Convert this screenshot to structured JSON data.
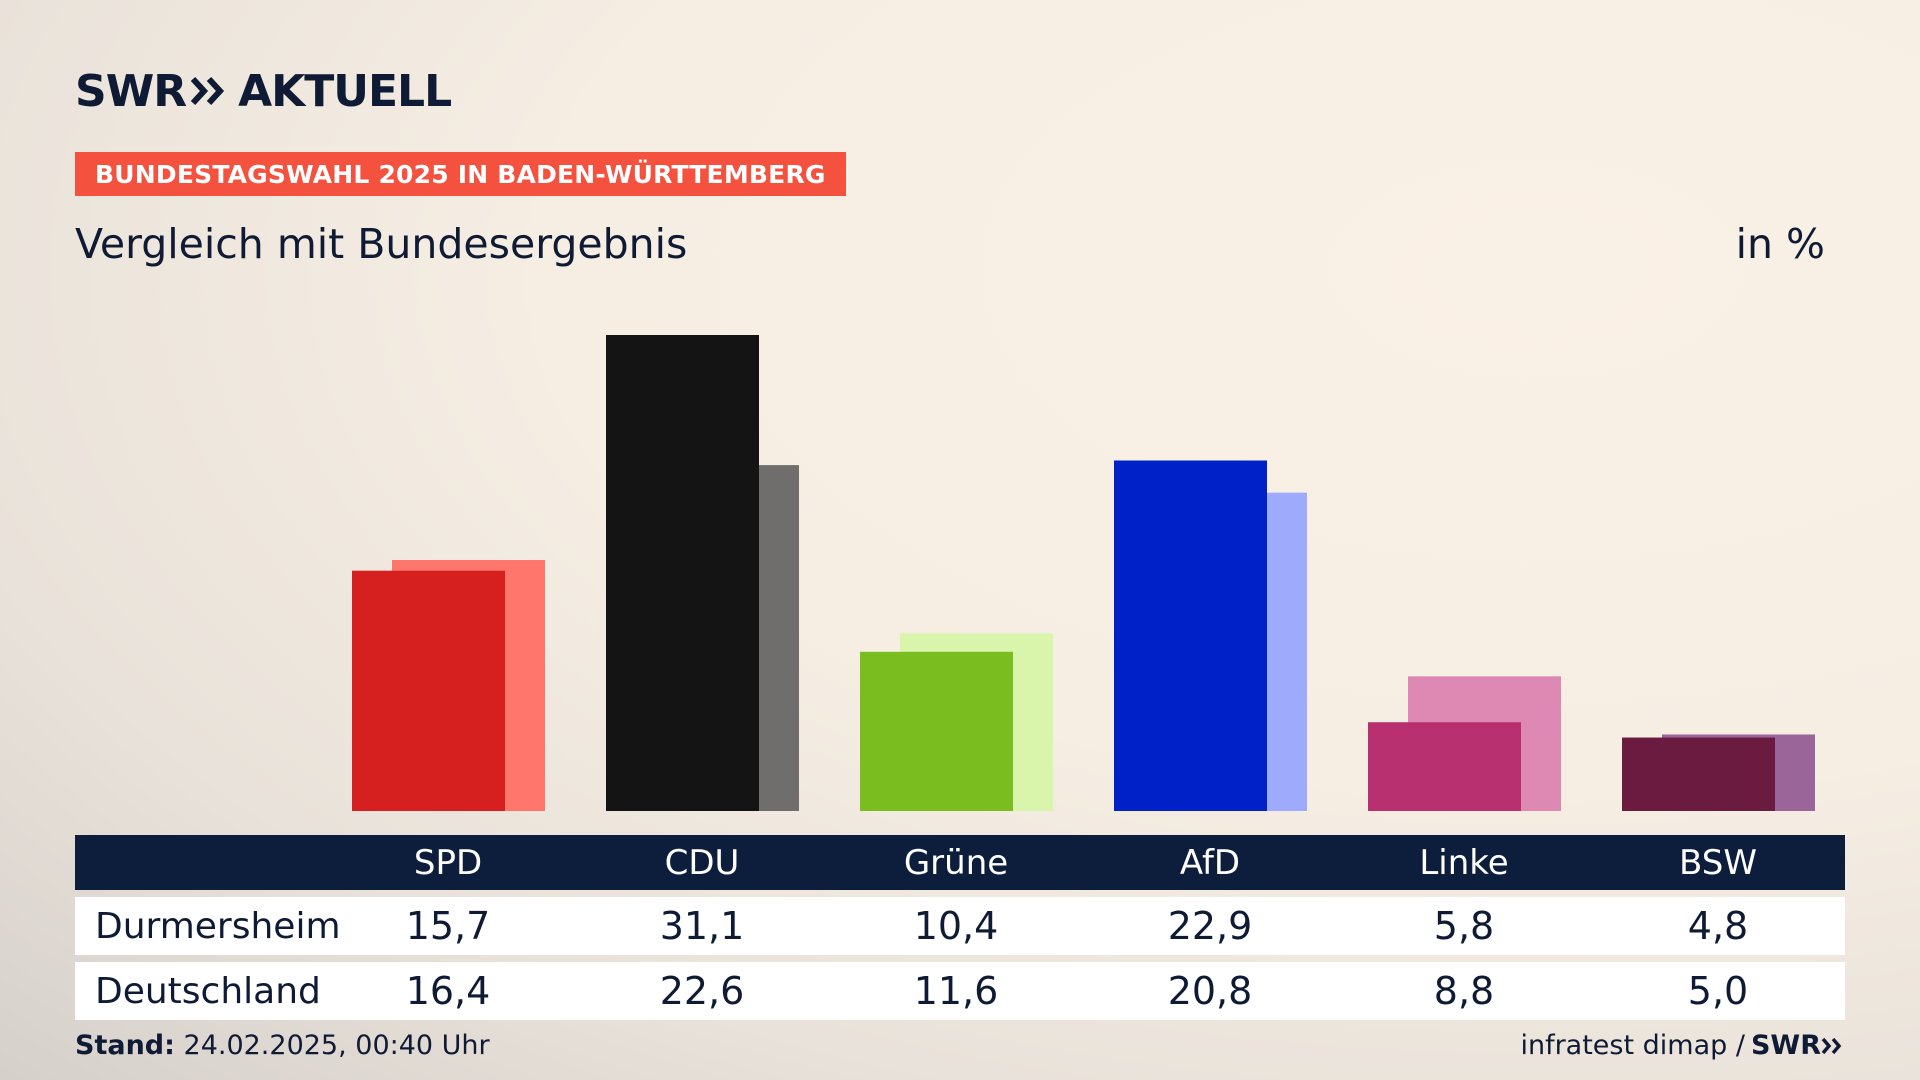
{
  "header": {
    "logo_prefix": "SWR",
    "logo_suffix": "AKTUELL",
    "banner": "BUNDESTAGSWAHL 2025 IN BADEN-WÜRTTEMBERG",
    "subtitle": "Vergleich mit Bundesergebnis",
    "unit": "in %"
  },
  "table": {
    "row1_label": "Durmersheim",
    "row2_label": "Deutschland"
  },
  "footer": {
    "stand_label": "Stand:",
    "stand_value": "24.02.2025, 00:40 Uhr",
    "source": "infratest dimap /",
    "brand": "SWR"
  },
  "chart_data": {
    "type": "bar",
    "categories": [
      "SPD",
      "CDU",
      "Grüne",
      "AfD",
      "Linke",
      "BSW"
    ],
    "series": [
      {
        "name": "Durmersheim",
        "values": [
          15.7,
          31.1,
          10.4,
          22.9,
          5.8,
          4.8
        ],
        "display": [
          "15,7",
          "31,1",
          "10,4",
          "22,9",
          "5,8",
          "4,8"
        ]
      },
      {
        "name": "Deutschland",
        "values": [
          16.4,
          22.6,
          11.6,
          20.8,
          8.8,
          5.0
        ],
        "display": [
          "16,4",
          "22,6",
          "11,6",
          "20,8",
          "8,8",
          "5,0"
        ]
      }
    ],
    "colors_primary": [
      "#d62020",
      "#141414",
      "#79bd1f",
      "#0021c8",
      "#b83070",
      "#6b1a40"
    ],
    "colors_secondary": [
      "#ff766c",
      "#6f6e6c",
      "#d8f5ab",
      "#9eaafc",
      "#de88b4",
      "#9a6598"
    ],
    "ylim": [
      0,
      32
    ],
    "grid": false,
    "legend": "none"
  }
}
